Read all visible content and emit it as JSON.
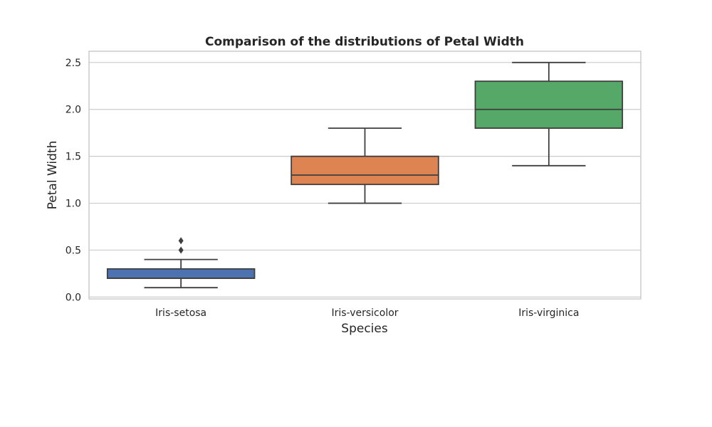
{
  "chart_data": {
    "type": "box",
    "title": "Comparison of the distributions of Petal Width",
    "xlabel": "Species",
    "ylabel": "Petal Width",
    "ylim": [
      -0.02,
      2.62
    ],
    "yticks": [
      "0.0",
      "0.5",
      "1.0",
      "1.5",
      "2.0",
      "2.5"
    ],
    "grid": "y",
    "categories": [
      "Iris-setosa",
      "Iris-versicolor",
      "Iris-virginica"
    ],
    "boxes": [
      {
        "category": "Iris-setosa",
        "whisker_low": 0.1,
        "q1": 0.2,
        "median": 0.2,
        "q3": 0.3,
        "whisker_high": 0.4,
        "outliers": [
          0.5,
          0.6
        ],
        "color": "#4c72b0"
      },
      {
        "category": "Iris-versicolor",
        "whisker_low": 1.0,
        "q1": 1.2,
        "median": 1.3,
        "q3": 1.5,
        "whisker_high": 1.8,
        "outliers": [],
        "color": "#dd8452"
      },
      {
        "category": "Iris-virginica",
        "whisker_low": 1.4,
        "q1": 1.8,
        "median": 2.0,
        "q3": 2.3,
        "whisker_high": 2.5,
        "outliers": [],
        "color": "#55a868"
      }
    ]
  }
}
